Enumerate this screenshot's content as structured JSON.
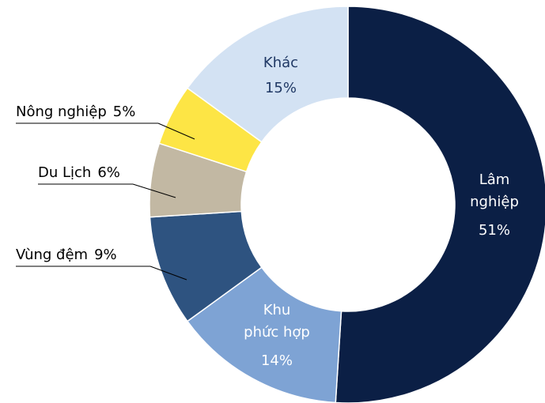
{
  "chart_data": {
    "type": "donut",
    "categories": [
      "Lâm nghiệp",
      "Khu phức hợp",
      "Vùng đệm",
      "Du Lịch",
      "Nông nghiệp",
      "Khác"
    ],
    "values": [
      51,
      14,
      9,
      6,
      5,
      15
    ],
    "value_labels": [
      "51%",
      "14%",
      "9%",
      "6%",
      "5%",
      "15%"
    ],
    "colors": [
      "#0b1f45",
      "#7ea3d4",
      "#2e5380",
      "#c2b8a3",
      "#fde545",
      "#d3e2f3"
    ]
  }
}
